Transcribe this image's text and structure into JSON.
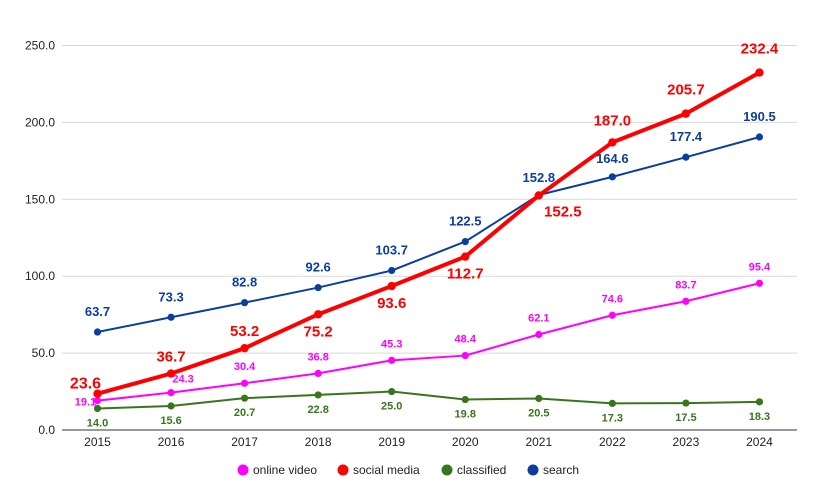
{
  "chart_data": {
    "type": "line",
    "title": "",
    "xlabel": "",
    "ylabel": "",
    "ylim": [
      0,
      250
    ],
    "yticks": [
      0,
      50,
      100,
      150,
      200,
      250
    ],
    "ytick_labels": [
      "0.0",
      "50.0",
      "100.0",
      "150.0",
      "200.0",
      "250.0"
    ],
    "grid": true,
    "legend_position": "bottom",
    "categories": [
      "2015",
      "2016",
      "2017",
      "2018",
      "2019",
      "2020",
      "2021",
      "2022",
      "2023",
      "2024"
    ],
    "series": [
      {
        "name": "online video",
        "color": "#ff00ff",
        "values": [
          19.1,
          24.3,
          30.4,
          36.8,
          45.3,
          48.4,
          62.1,
          74.6,
          83.7,
          95.4
        ],
        "labels": [
          "19.1",
          "24.3",
          "30.4",
          "36.8",
          "45.3",
          "48.4",
          "62.1",
          "74.6",
          "83.7",
          "95.4"
        ]
      },
      {
        "name": "social media",
        "color": "#ff0000",
        "values": [
          23.6,
          36.7,
          53.2,
          75.2,
          93.6,
          112.7,
          152.5,
          187.0,
          205.7,
          232.4
        ],
        "labels": [
          "23.6",
          "36.7",
          "53.2",
          "75.2",
          "93.6",
          "112.7",
          "152.5",
          "187.0",
          "205.7",
          "232.4"
        ]
      },
      {
        "name": "classified",
        "color": "#38761d",
        "values": [
          14.0,
          15.6,
          20.7,
          22.8,
          25.0,
          19.8,
          20.5,
          17.3,
          17.5,
          18.3
        ],
        "labels": [
          "14.0",
          "15.6",
          "20.7",
          "22.8",
          "25.0",
          "19.8",
          "20.5",
          "17.3",
          "17.5",
          "18.3"
        ]
      },
      {
        "name": "search",
        "color": "#0b3f9e",
        "values": [
          63.7,
          73.3,
          82.8,
          92.6,
          103.7,
          122.5,
          152.8,
          164.6,
          177.4,
          190.5
        ],
        "labels": [
          "63.7",
          "73.3",
          "82.8",
          "92.6",
          "103.7",
          "122.5",
          "152.8",
          "164.6",
          "177.4",
          "190.5"
        ]
      }
    ]
  }
}
